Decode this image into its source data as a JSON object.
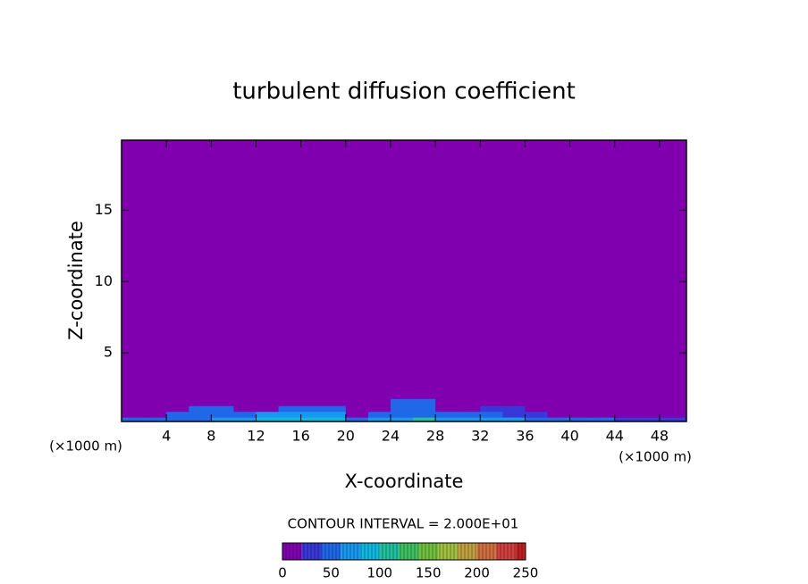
{
  "chart_data": {
    "type": "contour",
    "title": "turbulent diffusion coefficient",
    "xlabel": "X-coordinate",
    "ylabel": "Z-coordinate",
    "x_unit": "(×1000 m)",
    "y_unit": "(×1000 m)",
    "xlim": [
      0,
      50.4
    ],
    "ylim": [
      0.2,
      19.9
    ],
    "xticks": [
      4,
      8,
      12,
      16,
      20,
      24,
      28,
      32,
      36,
      40,
      44,
      48
    ],
    "yticks": [
      5,
      10,
      15
    ],
    "x_edges": [
      0,
      2,
      4,
      6,
      8,
      10,
      12,
      14,
      16,
      18,
      20,
      22,
      24,
      26,
      28,
      30,
      32,
      34,
      36,
      38,
      40,
      42,
      44,
      46,
      48,
      50.4
    ],
    "z_edges": [
      0.2,
      0.5,
      0.9,
      1.3,
      1.8,
      19.9
    ],
    "values": [
      [
        50,
        50,
        50,
        50,
        60,
        60,
        90,
        90,
        90,
        90,
        40,
        60,
        60,
        100,
        60,
        60,
        60,
        60,
        40,
        40,
        40,
        40,
        20,
        20,
        20
      ],
      [
        10,
        10,
        50,
        50,
        50,
        40,
        60,
        60,
        60,
        60,
        10,
        50,
        50,
        50,
        40,
        40,
        40,
        30,
        30,
        10,
        10,
        10,
        10,
        10,
        10
      ],
      [
        0,
        0,
        0,
        40,
        40,
        10,
        10,
        40,
        40,
        40,
        0,
        0,
        50,
        50,
        10,
        10,
        30,
        30,
        0,
        0,
        0,
        0,
        0,
        0,
        0
      ],
      [
        0,
        0,
        0,
        0,
        0,
        0,
        0,
        0,
        0,
        0,
        0,
        0,
        40,
        40,
        0,
        0,
        0,
        0,
        0,
        0,
        0,
        0,
        0,
        0,
        0
      ],
      [
        0,
        0,
        0,
        0,
        0,
        0,
        0,
        0,
        0,
        0,
        0,
        0,
        0,
        0,
        0,
        0,
        0,
        0,
        0,
        0,
        0,
        0,
        0,
        0,
        0
      ]
    ],
    "contour_interval": 20,
    "contour_label": "CONTOUR INTERVAL = 2.000E+01",
    "colors": [
      "#8000b0",
      "#3838d8",
      "#2068e8",
      "#1898f0",
      "#10b8e0",
      "#20c0a0",
      "#40c060",
      "#70c040",
      "#a0c040",
      "#c0a040",
      "#d07040",
      "#d04040",
      "#c02020"
    ],
    "colorbar_lim": [
      0,
      250
    ],
    "colorbar_ticks": [
      0,
      50,
      100,
      150,
      200,
      250
    ]
  }
}
